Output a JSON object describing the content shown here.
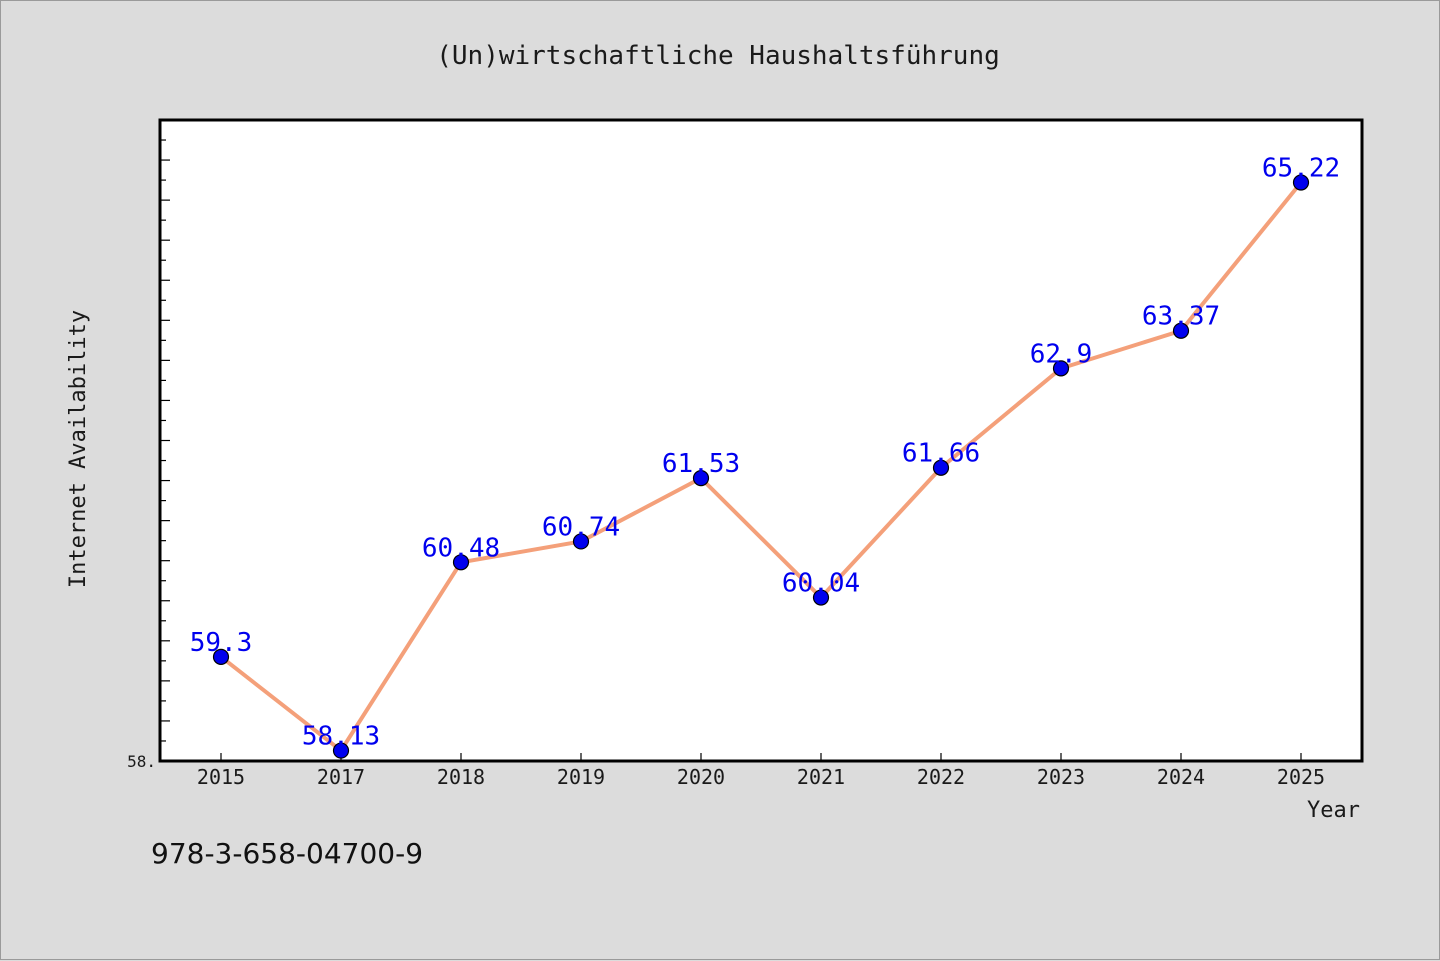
{
  "chart_data": {
    "type": "line",
    "title": "(Un)wirtschaftliche Haushaltsführung",
    "xlabel": "Year",
    "ylabel": "Internet Availability",
    "categories": [
      "2015",
      "2017",
      "2018",
      "2019",
      "2020",
      "2021",
      "2022",
      "2023",
      "2024",
      "2025"
    ],
    "series": [
      {
        "values": [
          59.3,
          58.13,
          60.48,
          60.74,
          61.53,
          60.04,
          61.66,
          62.9,
          63.37,
          65.22
        ],
        "data_labels": [
          "59.3",
          "58.13",
          "60.48",
          "60.74",
          "61.53",
          "60.04",
          "61.66",
          "62.9",
          "63.37",
          "65.22"
        ]
      }
    ],
    "y_tick_labels": [
      "58."
    ],
    "ylim": [
      58.0,
      66.0
    ],
    "grid": false,
    "line_color": "#f4a07a",
    "marker_color": "#0000ee",
    "label_color": "#0000ee"
  },
  "footer": {
    "isbn": "978-3-658-04700-9"
  }
}
